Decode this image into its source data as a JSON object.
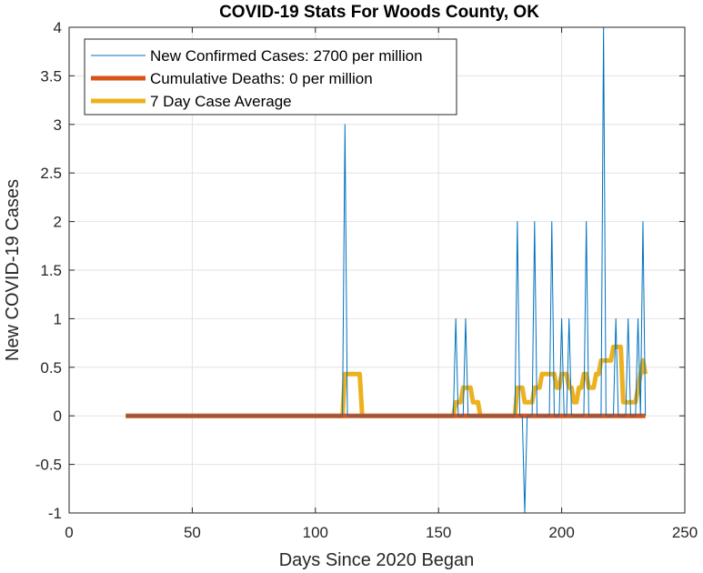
{
  "chart_data": {
    "type": "line",
    "title": "COVID-19 Stats For Woods County, OK",
    "xlabel": "Days Since 2020 Began",
    "ylabel": "New COVID-19 Cases",
    "xlim": [
      0,
      250
    ],
    "ylim": [
      -1,
      4
    ],
    "xticks": [
      0,
      50,
      100,
      150,
      200,
      250
    ],
    "yticks": [
      -1,
      -0.5,
      0,
      0.5,
      1,
      1.5,
      2,
      2.5,
      3,
      3.5,
      4
    ],
    "grid": true,
    "legend_position": "top-left",
    "series": [
      {
        "name": "New Confirmed Cases: 2700 per million",
        "color": "#0072BD",
        "width": "thin",
        "x": [
          23,
          111,
          112,
          113,
          156,
          157,
          158,
          160,
          161,
          162,
          181,
          182,
          183,
          184,
          185,
          186,
          188,
          189,
          190,
          195,
          196,
          197,
          199,
          200,
          201,
          202,
          203,
          204,
          206,
          207,
          209,
          210,
          211,
          215,
          216,
          217,
          218,
          219,
          221,
          222,
          223,
          226,
          227,
          228,
          230,
          231,
          232,
          233,
          234
        ],
        "y": [
          0,
          0,
          3,
          0,
          0,
          1,
          0,
          0,
          1,
          0,
          0,
          2,
          0,
          0,
          -1,
          0,
          0,
          2,
          0,
          0,
          2,
          0,
          0,
          1,
          0,
          0,
          1,
          0,
          0,
          0,
          0,
          2,
          0,
          0,
          0,
          4,
          0,
          0,
          0,
          1,
          0,
          0,
          1,
          0,
          0,
          1,
          0,
          2,
          0
        ]
      },
      {
        "name": "Cumulative Deaths: 0 per million",
        "color": "#D95319",
        "width": "thick",
        "x": [
          23,
          234
        ],
        "y": [
          0,
          0
        ]
      },
      {
        "name": "7 Day Case Average",
        "color": "#EDB120",
        "width": "thick",
        "x": [
          23,
          111,
          112,
          118,
          119,
          156,
          157,
          159,
          160,
          163,
          164,
          166,
          167,
          181,
          182,
          184,
          185,
          188,
          189,
          191,
          192,
          197,
          198,
          199,
          200,
          202,
          203,
          204,
          205,
          206,
          207,
          208,
          209,
          210,
          211,
          213,
          214,
          215,
          216,
          220,
          221,
          224,
          225,
          230,
          231,
          232,
          233,
          234
        ],
        "y": [
          0,
          0,
          0.43,
          0.43,
          0,
          0,
          0.14,
          0.14,
          0.29,
          0.29,
          0.14,
          0.14,
          0,
          0,
          0.29,
          0.29,
          0.14,
          0.14,
          0.29,
          0.29,
          0.43,
          0.43,
          0.29,
          0.29,
          0.43,
          0.43,
          0.29,
          0.29,
          0.14,
          0.14,
          0.29,
          0.29,
          0.43,
          0.43,
          0.29,
          0.29,
          0.43,
          0.43,
          0.57,
          0.57,
          0.71,
          0.71,
          0.14,
          0.14,
          0.29,
          0.43,
          0.57,
          0.43
        ]
      }
    ]
  }
}
